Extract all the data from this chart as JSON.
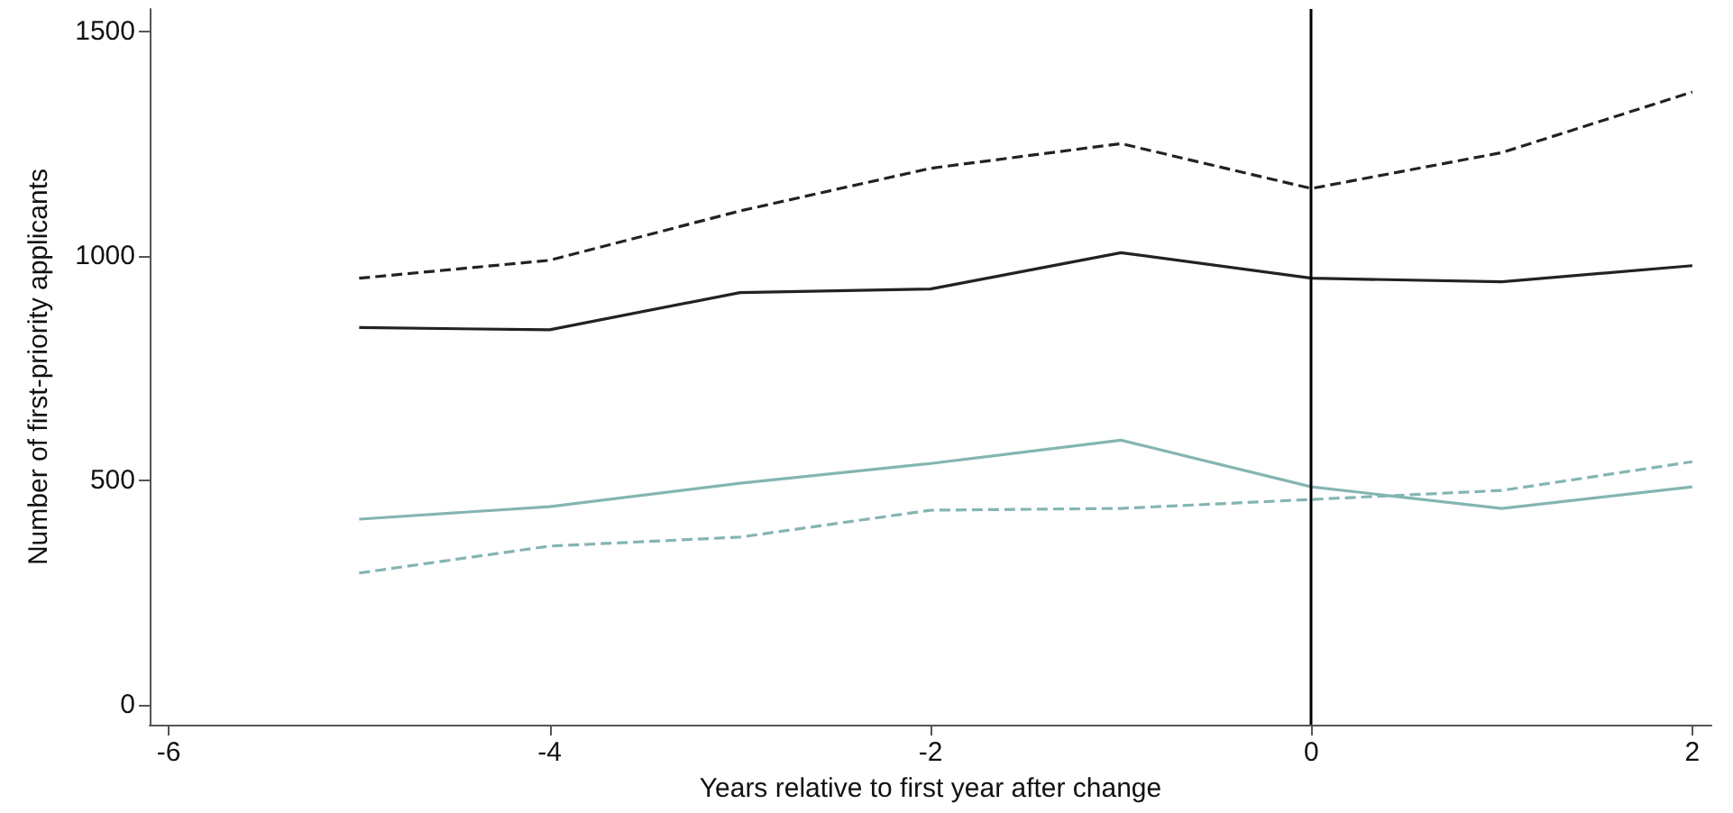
{
  "chart_data": {
    "type": "line",
    "xlabel": "Years relative to first year after change",
    "ylabel": "Number of first-priority applicants",
    "x": [
      -5,
      -4,
      -3,
      -2,
      -1,
      0,
      1,
      2
    ],
    "series": [
      {
        "color": "#222222",
        "line_style": "dashed",
        "values": [
          950,
          990,
          1100,
          1195,
          1250,
          1150,
          1230,
          1365
        ]
      },
      {
        "color": "#222222",
        "line_style": "solid",
        "values": [
          840,
          835,
          918,
          926,
          1007,
          950,
          942,
          978
        ]
      },
      {
        "color": "#84b5b2",
        "line_style": "solid",
        "values": [
          413,
          441,
          493,
          537,
          589,
          485,
          437,
          485
        ]
      },
      {
        "color": "#84b5b2",
        "line_style": "dashed",
        "values": [
          293,
          353,
          373,
          433,
          437,
          457,
          477,
          541
        ]
      }
    ],
    "xlim": [
      -6.1,
      2.1
    ],
    "xticks": [
      -6,
      -4,
      -2,
      0,
      2
    ],
    "ylim": [
      -45,
      1550
    ],
    "yticks": [
      0,
      500,
      1000,
      1500
    ],
    "ref_lines": [
      {
        "axis": "x",
        "value": 0,
        "color": "#000000",
        "line_style": "solid"
      }
    ],
    "grid": false,
    "marker": "none"
  }
}
